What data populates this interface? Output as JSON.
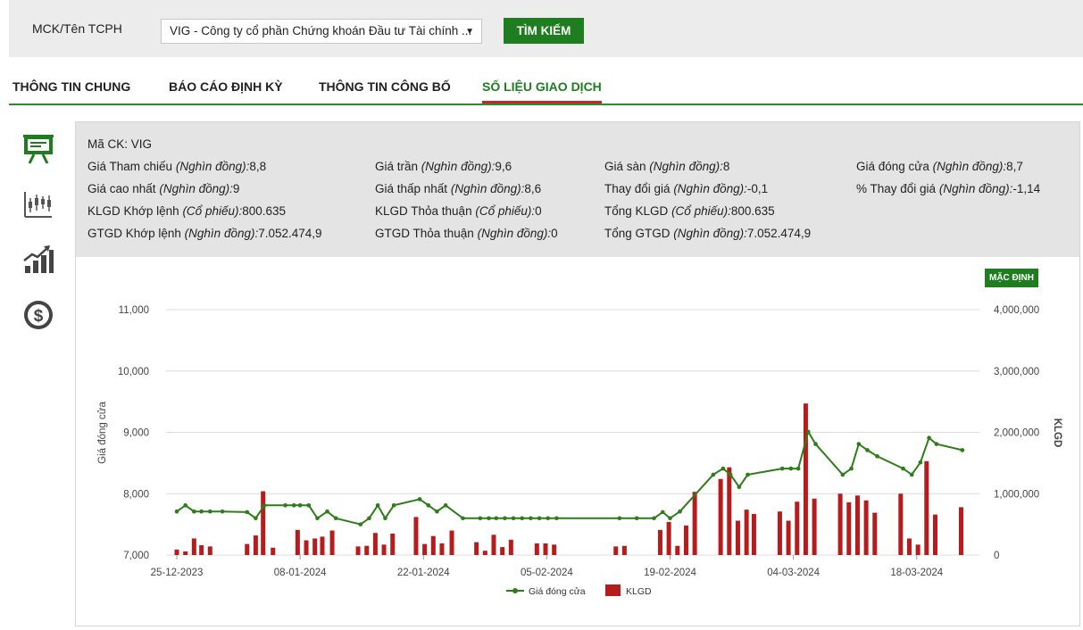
{
  "search": {
    "label": "MCK/Tên TCPH",
    "selected_company": "VIG - Công ty cổ phần Chứng khoán Đầu tư Tài chính ...",
    "caret": "▼",
    "button_label": "TÌM KIẾM"
  },
  "tabs": [
    {
      "label": "THÔNG TIN CHUNG",
      "active": false
    },
    {
      "label": "BÁO CÁO ĐỊNH KỲ",
      "active": false
    },
    {
      "label": "THÔNG TIN CÔNG BỐ",
      "active": false
    },
    {
      "label": "SỐ LIỆU GIAO DỊCH",
      "active": true
    }
  ],
  "side_icons": [
    "presentation-board-icon",
    "candlestick-chart-icon",
    "growth-chart-icon",
    "dollar-coin-icon"
  ],
  "info": {
    "ma_ck": {
      "label": "Mã CK:",
      "value": "VIG"
    },
    "gia_tham_chieu": {
      "label": "Giá Tham chiếu",
      "unit": "(Nghìn đồng):",
      "value": "8,8"
    },
    "gia_tran": {
      "label": "Giá trần",
      "unit": "(Nghìn đồng):",
      "value": "9,6"
    },
    "gia_san": {
      "label": "Giá sàn",
      "unit": "(Nghìn đồng):",
      "value": "8"
    },
    "gia_dong_cua": {
      "label": "Giá đóng cửa",
      "unit": "(Nghìn đồng):",
      "value": "8,7"
    },
    "gia_cao_nhat": {
      "label": "Giá cao nhất",
      "unit": "(Nghìn đồng):",
      "value": "9"
    },
    "gia_thap_nhat": {
      "label": "Giá thấp nhất",
      "unit": "(Nghìn đồng):",
      "value": "8,6"
    },
    "thay_doi_gia": {
      "label": "Thay đổi giá",
      "unit": "(Nghìn đồng):",
      "value": "-0,1"
    },
    "pct_thay_doi_gia": {
      "label": "% Thay đổi giá",
      "unit": "(Nghìn đồng):",
      "value": "-1,14"
    },
    "klgd_khop_lenh": {
      "label": "KLGD Khớp lệnh",
      "unit": "(Cổ phiếu):",
      "value": "800.635"
    },
    "klgd_thoa_thuan": {
      "label": "KLGD Thỏa thuận",
      "unit": "(Cổ phiếu):",
      "value": "0"
    },
    "tong_klgd": {
      "label": "Tổng KLGD",
      "unit": "(Cổ phiếu):",
      "value": "800.635"
    },
    "gtgd_khop_lenh": {
      "label": "GTGD Khớp lệnh",
      "unit": "(Nghìn đồng):",
      "value": "7.052.474,9"
    },
    "gtgd_thoa_thuan": {
      "label": "GTGD Thỏa thuận",
      "unit": "(Nghìn đồng):",
      "value": "0"
    },
    "tong_gtgd": {
      "label": "Tổng GTGD",
      "unit": "(Nghìn đồng):",
      "value": "7.052.474,9"
    }
  },
  "default_button": "MẶC ĐỊNH",
  "colors": {
    "accent_green": "#1e7d1e",
    "line_green": "#2e7d1a",
    "bar_red": "#b71c1c",
    "tab_underline": "#c62828"
  },
  "chart_data": {
    "type": "bar+line",
    "ylabel_left": "Giá đóng cửa",
    "ylabel_right": "KLGD",
    "ylim_left": [
      7000,
      11000
    ],
    "ylim_right": [
      0,
      4000000
    ],
    "yticks_left": [
      "7,000",
      "8,000",
      "9,000",
      "10,000",
      "11,000"
    ],
    "yticks_right": [
      "0",
      "1,000,000",
      "2,000,000",
      "3,000,000",
      "4,000,000"
    ],
    "xticks": [
      {
        "label": "25-12-2023",
        "index": 0
      },
      {
        "label": "08-01-2024",
        "index": 10
      },
      {
        "label": "22-01-2024",
        "index": 20
      },
      {
        "label": "05-02-2024",
        "index": 30
      },
      {
        "label": "19-02-2024",
        "index": 40
      },
      {
        "label": "04-03-2024",
        "index": 50
      },
      {
        "label": "18-03-2024",
        "index": 60
      }
    ],
    "x_span": 64,
    "legend": [
      "Giá đóng cửa",
      "KLGD"
    ],
    "price": [
      [
        0,
        7710
      ],
      [
        0.7,
        7810
      ],
      [
        1.4,
        7710
      ],
      [
        2,
        7710
      ],
      [
        2.7,
        7710
      ],
      [
        3.7,
        7710
      ],
      [
        5.7,
        7700
      ],
      [
        6.4,
        7600
      ],
      [
        7.1,
        7810
      ],
      [
        8.8,
        7810
      ],
      [
        9.5,
        7810
      ],
      [
        10,
        7810
      ],
      [
        10.7,
        7810
      ],
      [
        11.4,
        7600
      ],
      [
        12.2,
        7710
      ],
      [
        12.9,
        7600
      ],
      [
        14.9,
        7500
      ],
      [
        15.6,
        7600
      ],
      [
        16.3,
        7810
      ],
      [
        16.9,
        7600
      ],
      [
        17.6,
        7810
      ],
      [
        19.7,
        7910
      ],
      [
        20.4,
        7810
      ],
      [
        21.1,
        7710
      ],
      [
        21.8,
        7810
      ],
      [
        23.2,
        7600
      ],
      [
        24.6,
        7600
      ],
      [
        25.3,
        7600
      ],
      [
        25.9,
        7600
      ],
      [
        26.6,
        7600
      ],
      [
        27.3,
        7600
      ],
      [
        28,
        7600
      ],
      [
        28.7,
        7600
      ],
      [
        29.4,
        7600
      ],
      [
        30.1,
        7600
      ],
      [
        30.8,
        7600
      ],
      [
        35.9,
        7600
      ],
      [
        37.3,
        7600
      ],
      [
        38.7,
        7600
      ],
      [
        39.4,
        7700
      ],
      [
        40,
        7600
      ],
      [
        40.8,
        7710
      ],
      [
        43.5,
        8310
      ],
      [
        44.3,
        8410
      ],
      [
        44.9,
        8310
      ],
      [
        45.6,
        8110
      ],
      [
        46.3,
        8310
      ],
      [
        49.1,
        8410
      ],
      [
        49.8,
        8410
      ],
      [
        50.4,
        8410
      ],
      [
        51.2,
        9010
      ],
      [
        51.8,
        8810
      ],
      [
        54,
        8310
      ],
      [
        54.7,
        8410
      ],
      [
        55.3,
        8810
      ],
      [
        56,
        8710
      ],
      [
        56.8,
        8610
      ],
      [
        58.9,
        8410
      ],
      [
        59.6,
        8310
      ],
      [
        60.3,
        8510
      ],
      [
        61,
        8910
      ],
      [
        61.6,
        8810
      ],
      [
        63.7,
        8710
      ]
    ],
    "volume": [
      [
        0,
        90000
      ],
      [
        0.7,
        60000
      ],
      [
        1.4,
        270000
      ],
      [
        2,
        160000
      ],
      [
        2.7,
        140000
      ],
      [
        5.7,
        180000
      ],
      [
        6.4,
        320000
      ],
      [
        7,
        1040000
      ],
      [
        7.8,
        120000
      ],
      [
        9.8,
        410000
      ],
      [
        10.5,
        240000
      ],
      [
        11.2,
        270000
      ],
      [
        11.8,
        300000
      ],
      [
        12.6,
        400000
      ],
      [
        14.7,
        140000
      ],
      [
        15.4,
        150000
      ],
      [
        16.1,
        360000
      ],
      [
        16.8,
        170000
      ],
      [
        17.5,
        350000
      ],
      [
        19.4,
        620000
      ],
      [
        20.1,
        180000
      ],
      [
        20.8,
        310000
      ],
      [
        21.5,
        190000
      ],
      [
        22.3,
        400000
      ],
      [
        24.3,
        210000
      ],
      [
        25,
        70000
      ],
      [
        25.7,
        330000
      ],
      [
        26.4,
        130000
      ],
      [
        27.1,
        250000
      ],
      [
        29.2,
        190000
      ],
      [
        29.9,
        190000
      ],
      [
        30.6,
        170000
      ],
      [
        35.6,
        140000
      ],
      [
        36.3,
        150000
      ],
      [
        39.2,
        410000
      ],
      [
        39.9,
        540000
      ],
      [
        40.6,
        150000
      ],
      [
        41.3,
        480000
      ],
      [
        42,
        1030000
      ],
      [
        44.1,
        1240000
      ],
      [
        44.8,
        1430000
      ],
      [
        45.5,
        560000
      ],
      [
        46.2,
        740000
      ],
      [
        46.8,
        670000
      ],
      [
        48.9,
        710000
      ],
      [
        49.6,
        560000
      ],
      [
        50.3,
        870000
      ],
      [
        51,
        2470000
      ],
      [
        51.7,
        920000
      ],
      [
        53.8,
        1000000
      ],
      [
        54.5,
        860000
      ],
      [
        55.2,
        970000
      ],
      [
        55.9,
        890000
      ],
      [
        56.6,
        690000
      ],
      [
        58.7,
        1000000
      ],
      [
        59.4,
        270000
      ],
      [
        60.1,
        170000
      ],
      [
        60.8,
        1530000
      ],
      [
        61.5,
        660000
      ],
      [
        63.6,
        780000
      ]
    ]
  }
}
